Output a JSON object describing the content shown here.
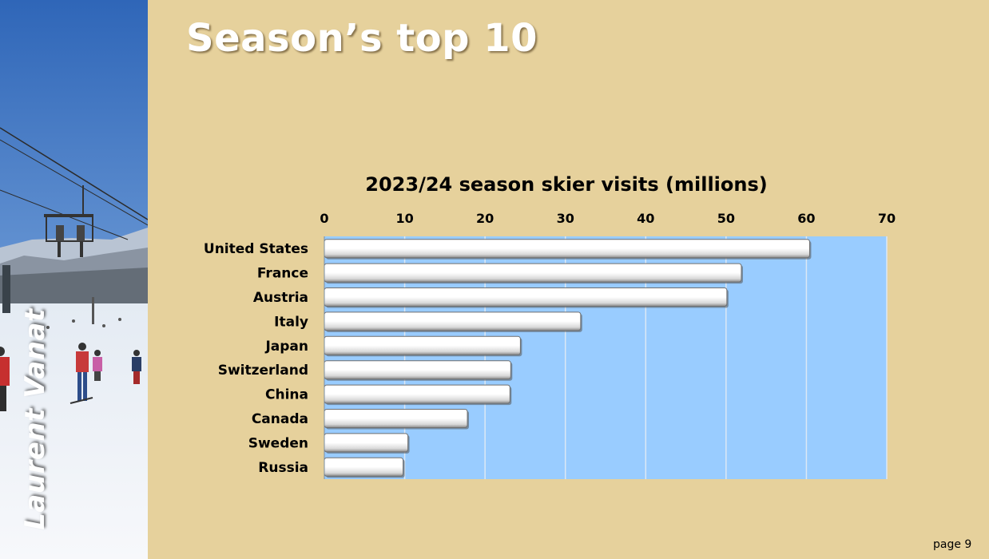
{
  "slide": {
    "title": "Season’s top 10",
    "author": "Laurent Vanat",
    "page": "page 9"
  },
  "colors": {
    "background": "#e6d19c",
    "plot_area": "#99ccff",
    "bar_fill": "#ffffff",
    "bar_edge": "#6f6f6f"
  },
  "chart_data": {
    "type": "bar",
    "orientation": "horizontal",
    "title": "2023/24 season skier visits (millions)",
    "xlabel": "",
    "ylabel": "",
    "categories": [
      "United States",
      "France",
      "Austria",
      "Italy",
      "Japan",
      "Switzerland",
      "China",
      "Canada",
      "Sweden",
      "Russia"
    ],
    "values": [
      60.4,
      51.9,
      50.1,
      31.9,
      24.4,
      23.2,
      23.1,
      17.8,
      10.4,
      9.8
    ],
    "xlim": [
      0,
      70
    ],
    "ticks": [
      "0",
      "10",
      "20",
      "30",
      "40",
      "50",
      "60",
      "70"
    ],
    "axis_position": "top",
    "grid": true,
    "legend": "none"
  }
}
